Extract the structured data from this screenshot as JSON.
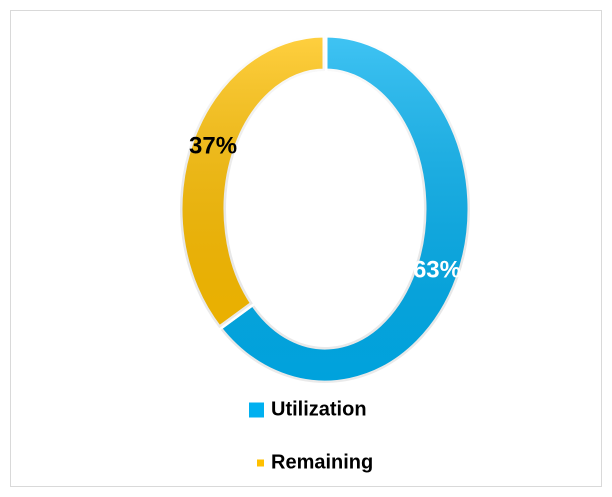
{
  "chart_data": {
    "type": "donut",
    "categories": [
      "Utilization",
      "Remaining"
    ],
    "values": [
      63,
      37
    ],
    "value_labels": [
      "63%",
      "37%"
    ],
    "colors": [
      "#00b0f0",
      "#ffc000"
    ],
    "legend": "bottom"
  }
}
